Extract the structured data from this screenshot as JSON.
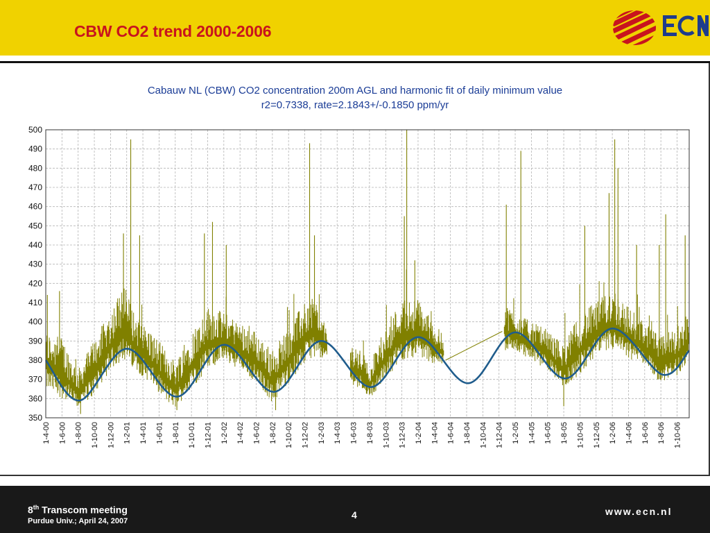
{
  "slide": {
    "title": "CBW CO2 trend 2000-2006",
    "logo_text": "ECN",
    "brand_color": "#c8141e",
    "header_color": "#f0d200",
    "logo_blue": "#1f3c8c"
  },
  "footer": {
    "meeting_num": "8",
    "meeting_sup": "th",
    "meeting_rest": " Transcom meeting",
    "venue": "Purdue Univ.; April 24, 2007",
    "page_number": "4",
    "website": "www.ecn.nl"
  },
  "chart_data": {
    "type": "line",
    "title": "Cabauw NL (CBW) CO2 concentration 200m AGL and harmonic fit of daily minimum value",
    "subtitle": "r2=0.7338, rate=2.1843+/-0.1850 ppm/yr",
    "xlabel": "",
    "ylabel": "",
    "ylim": [
      350,
      500
    ],
    "yticks": [
      350,
      360,
      370,
      380,
      390,
      400,
      410,
      420,
      430,
      440,
      450,
      460,
      470,
      480,
      490,
      500
    ],
    "xlim": [
      0,
      79.5
    ],
    "x_unit": "months since 1-4-00",
    "x_ticks": [
      {
        "label": "1-4-00",
        "m": 0
      },
      {
        "label": "1-6-00",
        "m": 2
      },
      {
        "label": "1-8-00",
        "m": 4
      },
      {
        "label": "1-10-00",
        "m": 6
      },
      {
        "label": "1-12-00",
        "m": 8
      },
      {
        "label": "1-2-01",
        "m": 10
      },
      {
        "label": "1-4-01",
        "m": 12
      },
      {
        "label": "1-6-01",
        "m": 14
      },
      {
        "label": "1-8-01",
        "m": 16
      },
      {
        "label": "1-10-01",
        "m": 18
      },
      {
        "label": "1-12-01",
        "m": 20
      },
      {
        "label": "1-2-02",
        "m": 22
      },
      {
        "label": "1-4-02",
        "m": 24
      },
      {
        "label": "1-6-02",
        "m": 26
      },
      {
        "label": "1-8-02",
        "m": 28
      },
      {
        "label": "1-10-02",
        "m": 30
      },
      {
        "label": "1-12-02",
        "m": 32
      },
      {
        "label": "1-2-03",
        "m": 34
      },
      {
        "label": "1-4-03",
        "m": 36
      },
      {
        "label": "1-6-03",
        "m": 38
      },
      {
        "label": "1-8-03",
        "m": 40
      },
      {
        "label": "1-10-03",
        "m": 42
      },
      {
        "label": "1-12-03",
        "m": 44
      },
      {
        "label": "1-2-04",
        "m": 46
      },
      {
        "label": "1-4-04",
        "m": 48
      },
      {
        "label": "1-6-04",
        "m": 50
      },
      {
        "label": "1-8-04",
        "m": 52
      },
      {
        "label": "1-10-04",
        "m": 54
      },
      {
        "label": "1-12-04",
        "m": 56
      },
      {
        "label": "1-2-05",
        "m": 58
      },
      {
        "label": "1-4-05",
        "m": 60
      },
      {
        "label": "1-6-05",
        "m": 62
      },
      {
        "label": "1-8-05",
        "m": 64
      },
      {
        "label": "1-10-05",
        "m": 66
      },
      {
        "label": "1-12-05",
        "m": 68
      },
      {
        "label": "1-2-06",
        "m": 70
      },
      {
        "label": "1-4-06",
        "m": 72
      },
      {
        "label": "1-6-06",
        "m": 74
      },
      {
        "label": "1-8-06",
        "m": 76
      },
      {
        "label": "1-10-06",
        "m": 78
      }
    ],
    "grid": true,
    "series": [
      {
        "role": "observations",
        "color": "#808000",
        "gaps": [
          [
            34.8,
            37.6
          ],
          [
            49.2,
            56.6
          ]
        ],
        "bridge_line": [
          [
            49.4,
            380
          ],
          [
            56.4,
            395
          ]
        ],
        "envelope_points": [
          {
            "m": 0,
            "low": 365,
            "high": 395
          },
          {
            "m": 2,
            "low": 360,
            "high": 392
          },
          {
            "m": 4,
            "low": 355,
            "high": 375
          },
          {
            "m": 6,
            "low": 362,
            "high": 392
          },
          {
            "m": 8,
            "low": 375,
            "high": 405
          },
          {
            "m": 9.5,
            "low": 380,
            "high": 420
          },
          {
            "m": 11,
            "low": 375,
            "high": 405
          },
          {
            "m": 13,
            "low": 368,
            "high": 395
          },
          {
            "m": 15,
            "low": 358,
            "high": 385
          },
          {
            "m": 16,
            "low": 355,
            "high": 380
          },
          {
            "m": 18,
            "low": 365,
            "high": 395
          },
          {
            "m": 20,
            "low": 375,
            "high": 408
          },
          {
            "m": 22,
            "low": 380,
            "high": 405
          },
          {
            "m": 24,
            "low": 375,
            "high": 400
          },
          {
            "m": 26,
            "low": 368,
            "high": 395
          },
          {
            "m": 28,
            "low": 358,
            "high": 385
          },
          {
            "m": 30,
            "low": 368,
            "high": 398
          },
          {
            "m": 32,
            "low": 378,
            "high": 410
          },
          {
            "m": 33,
            "low": 382,
            "high": 415
          },
          {
            "m": 34.8,
            "low": 380,
            "high": 395
          },
          {
            "m": 37.6,
            "low": 368,
            "high": 388
          },
          {
            "m": 39,
            "low": 365,
            "high": 385
          },
          {
            "m": 40,
            "low": 360,
            "high": 378
          },
          {
            "m": 42,
            "low": 370,
            "high": 398
          },
          {
            "m": 44,
            "low": 380,
            "high": 412
          },
          {
            "m": 46,
            "low": 382,
            "high": 412
          },
          {
            "m": 48,
            "low": 378,
            "high": 400
          },
          {
            "m": 49.2,
            "low": 378,
            "high": 392
          },
          {
            "m": 56.6,
            "low": 385,
            "high": 410
          },
          {
            "m": 58,
            "low": 385,
            "high": 405
          },
          {
            "m": 60,
            "low": 380,
            "high": 400
          },
          {
            "m": 62,
            "low": 375,
            "high": 396
          },
          {
            "m": 64,
            "low": 366,
            "high": 388
          },
          {
            "m": 66,
            "low": 372,
            "high": 405
          },
          {
            "m": 68,
            "low": 382,
            "high": 410
          },
          {
            "m": 70,
            "low": 385,
            "high": 418
          },
          {
            "m": 72,
            "low": 380,
            "high": 408
          },
          {
            "m": 74,
            "low": 378,
            "high": 400
          },
          {
            "m": 76,
            "low": 368,
            "high": 392
          },
          {
            "m": 78,
            "low": 372,
            "high": 398
          },
          {
            "m": 79.5,
            "low": 380,
            "high": 405
          }
        ],
        "spikes": [
          {
            "m": 10.5,
            "v": 495
          },
          {
            "m": 9.6,
            "v": 446
          },
          {
            "m": 11.6,
            "v": 445
          },
          {
            "m": 19.6,
            "v": 446
          },
          {
            "m": 20.6,
            "v": 452
          },
          {
            "m": 22.3,
            "v": 440
          },
          {
            "m": 32.6,
            "v": 493
          },
          {
            "m": 33.2,
            "v": 445
          },
          {
            "m": 44.6,
            "v": 500
          },
          {
            "m": 44.3,
            "v": 455
          },
          {
            "m": 45.6,
            "v": 432
          },
          {
            "m": 56.9,
            "v": 461
          },
          {
            "m": 58.7,
            "v": 489
          },
          {
            "m": 66.6,
            "v": 450
          },
          {
            "m": 69.6,
            "v": 467
          },
          {
            "m": 70.3,
            "v": 495
          },
          {
            "m": 70.7,
            "v": 480
          },
          {
            "m": 76.6,
            "v": 456
          },
          {
            "m": 79.0,
            "v": 445
          },
          {
            "m": 4.3,
            "v": 352
          },
          {
            "m": 16.2,
            "v": 354
          },
          {
            "m": 28.4,
            "v": 354
          },
          {
            "m": 64.0,
            "v": 356
          },
          {
            "m": 0.2,
            "v": 414
          },
          {
            "m": 1.7,
            "v": 416
          },
          {
            "m": 73.0,
            "v": 440
          },
          {
            "m": 75.8,
            "v": 440
          }
        ]
      },
      {
        "role": "harmonic fit",
        "color": "#1f5c8c",
        "points": [
          {
            "m": 0,
            "v": 380
          },
          {
            "m": 4.2,
            "v": 359
          },
          {
            "m": 10,
            "v": 386
          },
          {
            "m": 16.2,
            "v": 361
          },
          {
            "m": 22,
            "v": 388
          },
          {
            "m": 28.2,
            "v": 363.5
          },
          {
            "m": 34,
            "v": 390
          },
          {
            "m": 40.2,
            "v": 366
          },
          {
            "m": 46,
            "v": 392
          },
          {
            "m": 52.2,
            "v": 368
          },
          {
            "m": 58,
            "v": 394.5
          },
          {
            "m": 64.2,
            "v": 370.5
          },
          {
            "m": 70,
            "v": 396.5
          },
          {
            "m": 76.2,
            "v": 372.5
          },
          {
            "m": 79.5,
            "v": 385
          }
        ]
      }
    ]
  }
}
